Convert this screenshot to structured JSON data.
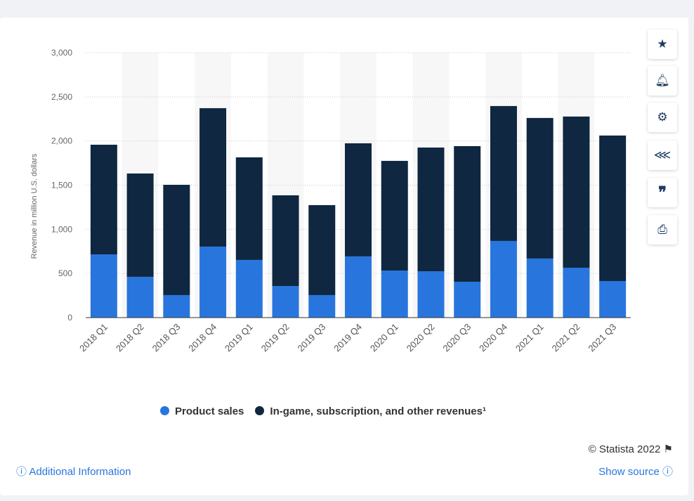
{
  "chart_data": {
    "type": "bar",
    "stacked": true,
    "categories": [
      "2018 Q1",
      "2018 Q2",
      "2018 Q3",
      "2018 Q4",
      "2019 Q1",
      "2019 Q2",
      "2019 Q3",
      "2019 Q4",
      "2020 Q1",
      "2020 Q2",
      "2020 Q3",
      "2020 Q4",
      "2021 Q1",
      "2021 Q2",
      "2021 Q3"
    ],
    "series": [
      {
        "name": "Product sales",
        "color": "#2876dd",
        "values": [
          716,
          462,
          255,
          804,
          653,
          358,
          255,
          693,
          533,
          525,
          406,
          868,
          669,
          565,
          414
        ]
      },
      {
        "name": "In-game, subscription, and other revenues¹",
        "color": "#0f2740",
        "values": [
          1242,
          1170,
          1249,
          1568,
          1162,
          1027,
          1019,
          1281,
          1242,
          1401,
          1536,
          1528,
          1592,
          1712,
          1648
        ]
      }
    ],
    "ylabel": "Revenue in million U.S. dollars",
    "xlabel": "",
    "ylim": [
      0,
      3000
    ],
    "yticks": [
      "0",
      "500",
      "1,000",
      "1,500",
      "2,000",
      "2,500",
      "3,000"
    ],
    "grid": true,
    "legend": "bottom"
  },
  "footer": {
    "copyright": "© Statista 2022",
    "additional_info": "Additional Information",
    "show_source": "Show source"
  },
  "sidebar": [
    "star-icon",
    "bell-icon",
    "gear-icon",
    "share-icon",
    "quote-icon",
    "print-icon"
  ]
}
